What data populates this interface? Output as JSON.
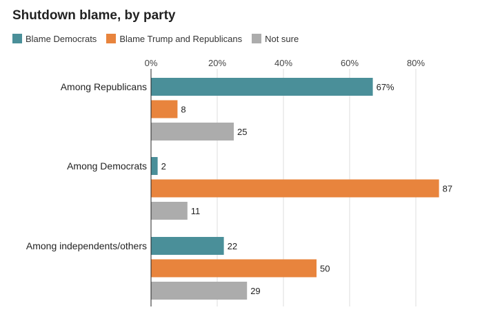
{
  "chart_data": {
    "type": "bar",
    "orientation": "horizontal",
    "title": "Shutdown blame, by party",
    "categories": [
      "Among Republicans",
      "Among Democrats",
      "Among independents/others"
    ],
    "series": [
      {
        "name": "Blame Democrats",
        "color": "#4a8f99",
        "values": [
          67,
          2,
          22
        ],
        "labels": [
          "67%",
          "2",
          "22"
        ]
      },
      {
        "name": "Blame Trump and Republicans",
        "color": "#e8843d",
        "values": [
          8,
          87,
          50
        ],
        "labels": [
          "8",
          "87",
          "50"
        ]
      },
      {
        "name": "Not sure",
        "color": "#acacac",
        "values": [
          25,
          11,
          29
        ],
        "labels": [
          "25",
          "11",
          "29"
        ]
      }
    ],
    "xaxis": {
      "ticks": [
        0,
        20,
        40,
        60,
        80
      ],
      "tick_labels": [
        "0%",
        "20%",
        "40%",
        "60%",
        "80%"
      ],
      "range": [
        0,
        100
      ]
    },
    "grid": true,
    "legend_position": "top-left"
  }
}
